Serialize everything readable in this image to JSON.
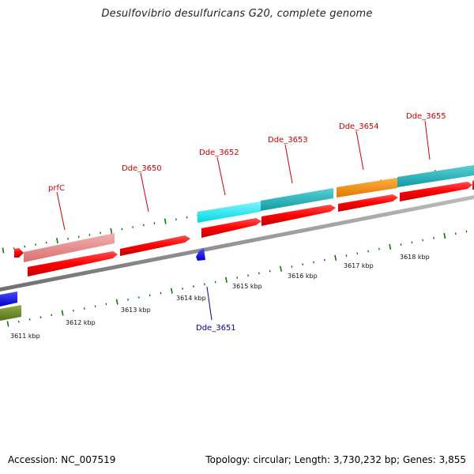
{
  "title": "Desulfovibrio desulfuricans G20, complete genome",
  "footer": {
    "accession": "Accession: NC_007519",
    "summary": "Topology: circular; Length: 3,730,232 bp; Genes: 3,855"
  },
  "colors": {
    "cds_red": "#ff0000",
    "cds_light_red": "#e88a8a",
    "cyan": "#00e8f0",
    "teal": "#20b8c0",
    "orange": "#ff8c00",
    "blue": "#0000ff",
    "olive": "#6b8e23",
    "backbone": "#8c8c8c",
    "ticks": "#0a7a0a",
    "label_red": "#cc0000",
    "label_blue": "#000099"
  },
  "kbp_labels": [
    "3611 kbp",
    "3612 kbp",
    "3613 kbp",
    "3614 kbp",
    "3615 kbp",
    "3616 kbp",
    "3617 kbp",
    "3618 kbp"
  ],
  "gene_labels": [
    {
      "name": "prfC",
      "strand": "forward"
    },
    {
      "name": "Dde_3650",
      "strand": "forward"
    },
    {
      "name": "Dde_3651",
      "strand": "reverse"
    },
    {
      "name": "Dde_3652",
      "strand": "forward"
    },
    {
      "name": "Dde_3653",
      "strand": "forward"
    },
    {
      "name": "Dde_3654",
      "strand": "forward"
    },
    {
      "name": "Dde_3655",
      "strand": "forward"
    }
  ]
}
